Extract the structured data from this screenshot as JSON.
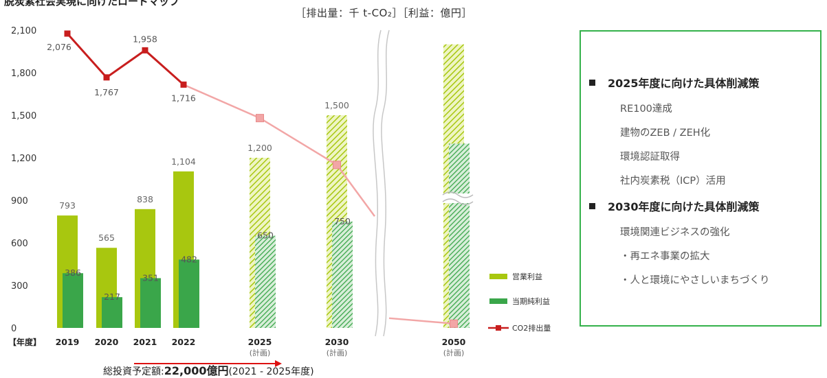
{
  "header": {
    "partial_title": "脱炭素社会実現に向けたロードマップ",
    "units": "［排出量：千 t-CO₂］［利益：億円］"
  },
  "chart_data": {
    "type": "bar",
    "categories": [
      "2019",
      "2020",
      "2021",
      "2022",
      "2025",
      "2030",
      "2050"
    ],
    "category_sublabels": [
      "",
      "",
      "",
      "",
      "(計画)",
      "(計画)",
      "(計画)"
    ],
    "x_axis_label": "【年度】",
    "ylim": [
      0,
      2100
    ],
    "yticks": [
      0,
      300,
      600,
      900,
      1200,
      1500,
      1800,
      2100
    ],
    "ytick_labels": [
      "0",
      "300",
      "600",
      "900",
      "1,200",
      "1,500",
      "1,800",
      "2,100"
    ],
    "axis_break_after": "2030",
    "series": [
      {
        "name": "営業利益",
        "kind": "bar",
        "color": "#a8c70f",
        "values": [
          793,
          565,
          838,
          1104,
          1200,
          1500,
          2000
        ],
        "labels": [
          "793",
          "565",
          "838",
          "1,104",
          "1,200",
          "1,500",
          ""
        ],
        "planned": [
          false,
          false,
          false,
          false,
          true,
          true,
          true
        ]
      },
      {
        "name": "当期純利益",
        "kind": "bar",
        "color": "#3aa64a",
        "values": [
          386,
          217,
          351,
          482,
          650,
          750,
          1300
        ],
        "labels": [
          "386",
          "217",
          "351",
          "482",
          "650",
          "750",
          ""
        ],
        "planned": [
          false,
          false,
          false,
          false,
          true,
          true,
          true
        ]
      },
      {
        "name": "CO2排出量",
        "kind": "line",
        "color": "#c81e1e",
        "plan_color": "#f2a6a6",
        "values": [
          2076,
          1767,
          1958,
          1716,
          1480,
          1150,
          30
        ],
        "labels": [
          "2,076",
          "1,767",
          "1,958",
          "1,716",
          "",
          "",
          ""
        ]
      }
    ],
    "legend_placement": "bottom-right",
    "grid": false
  },
  "panel": {
    "section1": {
      "title": "2025年度に向けた具体削減策",
      "items": [
        "RE100達成",
        "建物のZEB / ZEH化",
        "環境認証取得",
        "社内炭素税（ICP）活用"
      ]
    },
    "section2": {
      "title": "2030年度に向けた具体削減策",
      "items": [
        "環境関連ビジネスの強化",
        "・再エネ事業の拡大",
        "・人と環境にやさしいまちづくり"
      ]
    }
  },
  "footer": {
    "investment_label": "総投資予定額:",
    "investment_amount": "22,000億円",
    "investment_period": "(2021 - 2025年度)"
  }
}
